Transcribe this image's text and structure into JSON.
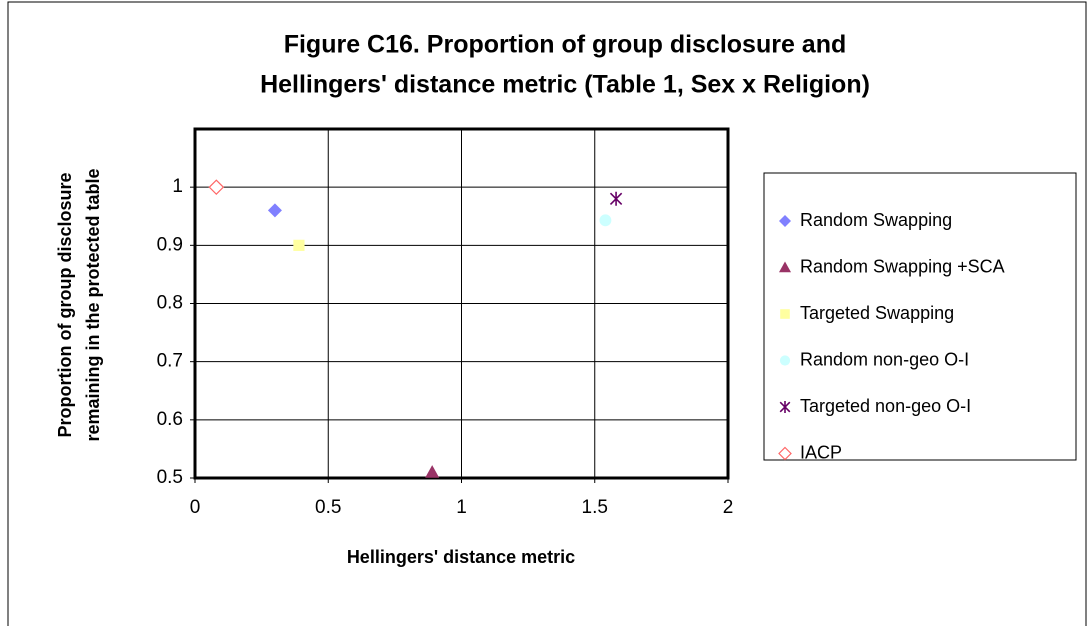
{
  "chart_data": {
    "type": "scatter",
    "title": [
      "Figure C16. Proportion of group disclosure and",
      "Hellingers' distance metric (Table 1, Sex x Religion)"
    ],
    "x_label": "Hellingers' distance metric",
    "y_label": [
      "Proportion of group disclosure",
      "remaining in the protected table"
    ],
    "xlim": [
      0,
      2
    ],
    "xticks": [
      0,
      0.5,
      1,
      1.5,
      2
    ],
    "ylim": [
      0.5,
      1.1
    ],
    "yticks": [
      0.5,
      0.6,
      0.7,
      0.8,
      0.9,
      1
    ],
    "grid": true,
    "legend": "right",
    "series": [
      {
        "name": "Random Swapping",
        "color": "#8080ff",
        "marker": "diamond",
        "x": [
          0.3
        ],
        "values": [
          0.96
        ]
      },
      {
        "name": "Random Swapping +SCA",
        "color": "#993366",
        "marker": "triangle",
        "x": [
          0.89
        ],
        "values": [
          0.51
        ]
      },
      {
        "name": "Targeted Swapping",
        "color": "#ffffa0",
        "marker": "square",
        "x": [
          0.39
        ],
        "values": [
          0.9
        ]
      },
      {
        "name": "Random non-geo O-I",
        "color": "#ccffff",
        "marker": "circle",
        "x": [
          1.54
        ],
        "values": [
          0.943
        ]
      },
      {
        "name": "Targeted non-geo O-I",
        "color": "#660066",
        "marker": "star",
        "x": [
          1.58
        ],
        "values": [
          0.98
        ]
      },
      {
        "name": "IACP",
        "color": "#ff6666",
        "marker": "open-diamond",
        "x": [
          0.08
        ],
        "values": [
          1.0
        ]
      }
    ]
  }
}
